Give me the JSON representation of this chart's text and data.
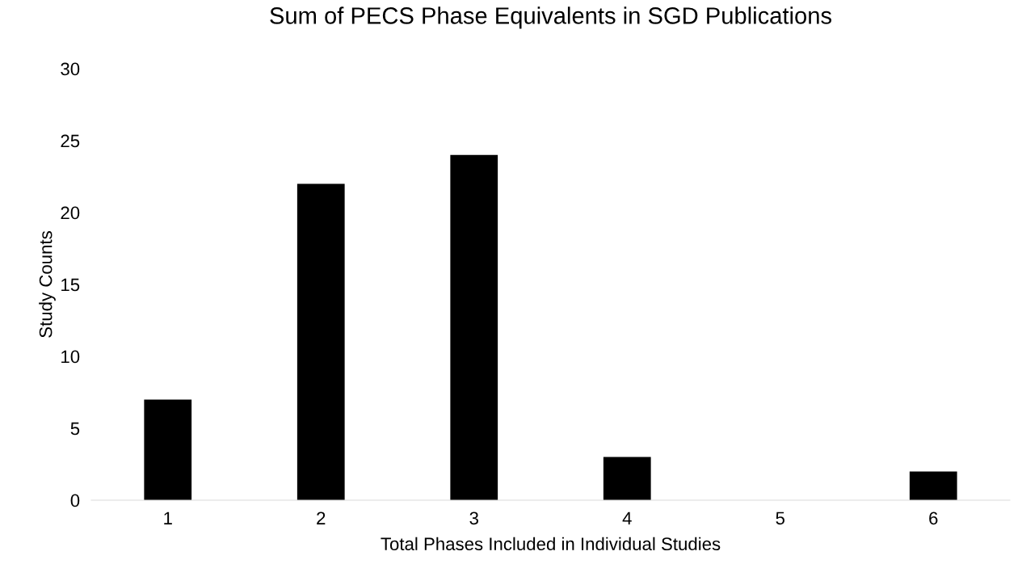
{
  "chart_data": {
    "type": "bar",
    "title": "Sum of PECS Phase Equivalents in SGD Publications",
    "xlabel": "Total Phases Included in Individual Studies",
    "ylabel": "Study Counts",
    "categories": [
      "1",
      "2",
      "3",
      "4",
      "5",
      "6"
    ],
    "values": [
      7,
      22,
      24,
      3,
      0,
      2
    ],
    "color": "#000000",
    "ylim": [
      0,
      30
    ],
    "yticks": [
      0,
      5,
      10,
      15,
      20,
      25,
      30
    ],
    "grid": false,
    "legend": false
  }
}
